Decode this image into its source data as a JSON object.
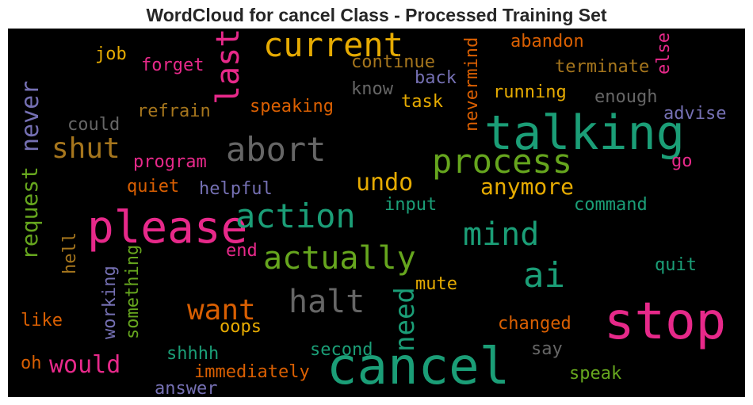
{
  "title": "WordCloud for cancel Class - Processed Training Set",
  "colors": {
    "teal": "#1b9e77",
    "orange": "#d95f02",
    "purple": "#7570b3",
    "pink": "#e7298a",
    "green": "#66a61e",
    "gold": "#e6ab02",
    "brown": "#a6761d",
    "gray": "#666666"
  },
  "words": [
    "current",
    "last",
    "job",
    "forget",
    "continue",
    "abandon",
    "else",
    "terminate",
    "know",
    "back",
    "task",
    "running",
    "enough",
    "nevermind",
    "refrain",
    "speaking",
    "never",
    "could",
    "shut",
    "abort",
    "talking",
    "advise",
    "request",
    "program",
    "process",
    "go",
    "quiet",
    "helpful",
    "undo",
    "anymore",
    "please",
    "action",
    "input",
    "command",
    "mind",
    "hell",
    "end",
    "actually",
    "something",
    "working",
    "ai",
    "quit",
    "need",
    "mute",
    "halt",
    "want",
    "stop",
    "like",
    "oops",
    "changed",
    "shhhh",
    "second",
    "say",
    "would",
    "oh",
    "immediately",
    "cancel",
    "speak",
    "answer"
  ]
}
